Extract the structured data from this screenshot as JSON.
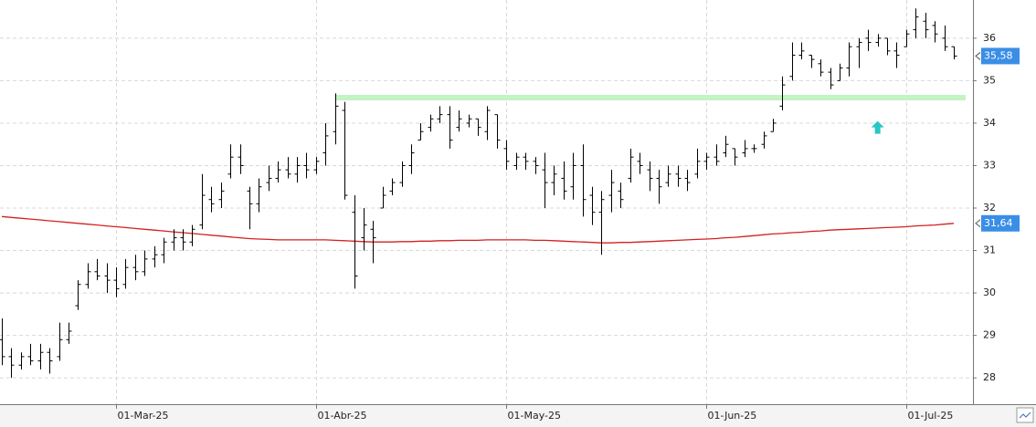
{
  "chart_data": {
    "type": "ohlc",
    "color": "#000000",
    "categories": [
      null,
      null,
      null,
      null,
      null,
      null,
      null,
      null,
      null,
      null,
      null,
      null,
      "01-Mar-25",
      null,
      null,
      null,
      null,
      null,
      null,
      null,
      null,
      null,
      null,
      null,
      null,
      null,
      null,
      null,
      null,
      null,
      null,
      null,
      null,
      "01-Abr-25",
      null,
      null,
      null,
      null,
      null,
      null,
      null,
      null,
      null,
      null,
      null,
      null,
      null,
      null,
      null,
      null,
      null,
      null,
      null,
      "01-May-25",
      null,
      null,
      null,
      null,
      null,
      null,
      null,
      null,
      null,
      null,
      null,
      null,
      null,
      null,
      null,
      null,
      null,
      null,
      null,
      null,
      "01-Jun-25",
      null,
      null,
      null,
      null,
      null,
      null,
      null,
      null,
      null,
      null,
      null,
      null,
      null,
      null,
      null,
      null,
      null,
      null,
      null,
      null,
      "01-Jul-25",
      null,
      null,
      null,
      null,
      null
    ],
    "open": [
      28.9,
      28.5,
      28.3,
      28.5,
      28.4,
      28.6,
      28.5,
      28.9,
      29.7,
      30.2,
      30.5,
      30.4,
      30.3,
      30.2,
      30.6,
      30.5,
      30.8,
      30.9,
      31.2,
      31.3,
      31.2,
      31.6,
      32.2,
      32.2,
      32.8,
      33.2,
      32.4,
      32.1,
      32.6,
      32.7,
      32.9,
      32.8,
      33.0,
      32.9,
      33.3,
      33.8,
      34.3,
      31.9,
      31.3,
      31.5,
      32.0,
      32.4,
      32.6,
      33.0,
      33.6,
      33.9,
      34.1,
      34.2,
      33.9,
      34.0,
      34.1,
      33.8,
      34.2,
      33.4,
      33.0,
      33.2,
      33.1,
      32.9,
      32.6,
      32.7,
      32.5,
      33.0,
      32.3,
      31.9,
      32.3,
      32.4,
      32.7,
      33.1,
      32.9,
      32.7,
      32.6,
      32.8,
      32.7,
      32.8,
      33.1,
      33.2,
      33.3,
      33.4,
      33.3,
      33.4,
      33.5,
      33.8,
      34.4,
      35.1,
      35.6,
      35.6,
      35.4,
      35.2,
      35.0,
      35.3,
      35.8,
      36.0,
      35.9,
      36.0,
      35.7,
      35.8,
      36.2,
      36.4,
      36.3,
      36.0,
      35.8
    ],
    "high": [
      29.4,
      28.7,
      28.6,
      28.8,
      28.8,
      28.7,
      29.3,
      29.3,
      30.3,
      30.7,
      30.8,
      30.7,
      30.6,
      30.8,
      30.9,
      31.0,
      31.1,
      31.3,
      31.5,
      31.5,
      31.6,
      32.8,
      32.5,
      32.6,
      33.5,
      33.5,
      32.5,
      32.7,
      33.0,
      33.1,
      33.2,
      33.2,
      33.3,
      33.2,
      34.0,
      34.7,
      34.5,
      32.3,
      32.0,
      31.7,
      32.5,
      32.7,
      33.1,
      33.5,
      34.0,
      34.2,
      34.4,
      34.4,
      34.3,
      34.2,
      34.1,
      34.4,
      34.2,
      33.6,
      33.3,
      33.3,
      33.2,
      33.3,
      33.0,
      33.1,
      33.3,
      33.5,
      32.5,
      32.4,
      32.9,
      32.6,
      33.4,
      33.3,
      33.1,
      32.9,
      33.0,
      33.0,
      32.9,
      33.4,
      33.3,
      33.5,
      33.7,
      33.4,
      33.6,
      33.5,
      33.8,
      34.1,
      35.1,
      35.9,
      35.9,
      35.6,
      35.5,
      35.3,
      35.4,
      35.9,
      36.0,
      36.2,
      36.1,
      36.0,
      35.9,
      36.2,
      36.7,
      36.6,
      36.4,
      36.3,
      35.8
    ],
    "low": [
      28.3,
      28.0,
      28.2,
      28.3,
      28.2,
      28.1,
      28.4,
      28.8,
      29.6,
      30.1,
      30.3,
      30.0,
      29.9,
      30.1,
      30.3,
      30.4,
      30.6,
      30.7,
      31.0,
      31.0,
      31.1,
      31.5,
      31.9,
      32.0,
      32.7,
      32.8,
      31.5,
      31.9,
      32.4,
      32.6,
      32.7,
      32.6,
      32.7,
      32.8,
      33.0,
      33.5,
      32.2,
      30.1,
      31.0,
      30.7,
      32.0,
      32.3,
      32.5,
      32.8,
      33.6,
      33.8,
      34.0,
      33.4,
      33.8,
      33.9,
      33.7,
      33.6,
      33.4,
      32.9,
      32.9,
      32.9,
      32.8,
      32.0,
      32.3,
      32.2,
      32.2,
      31.8,
      31.6,
      30.9,
      31.9,
      32.0,
      32.6,
      32.8,
      32.4,
      32.1,
      32.5,
      32.5,
      32.4,
      32.7,
      32.9,
      33.0,
      33.2,
      33.0,
      33.2,
      33.3,
      33.4,
      33.8,
      34.3,
      35.0,
      35.5,
      35.3,
      35.1,
      34.8,
      35.0,
      35.1,
      35.3,
      35.7,
      35.8,
      35.6,
      35.3,
      35.8,
      36.0,
      36.0,
      35.9,
      35.7,
      35.5
    ],
    "close": [
      28.5,
      28.3,
      28.5,
      28.4,
      28.6,
      28.4,
      28.9,
      29.1,
      30.2,
      30.5,
      30.4,
      30.3,
      30.1,
      30.6,
      30.5,
      30.8,
      30.9,
      31.2,
      31.3,
      31.2,
      31.5,
      32.3,
      32.1,
      32.4,
      33.2,
      33.0,
      32.1,
      32.5,
      32.7,
      32.9,
      32.8,
      33.0,
      32.9,
      33.1,
      33.7,
      34.4,
      32.3,
      30.4,
      31.6,
      31.3,
      32.3,
      32.6,
      33.0,
      33.3,
      33.8,
      34.1,
      34.2,
      33.6,
      34.1,
      34.1,
      33.9,
      34.3,
      33.6,
      33.1,
      33.2,
      33.1,
      33.0,
      32.6,
      32.8,
      32.4,
      33.0,
      32.2,
      31.9,
      32.2,
      32.6,
      32.2,
      33.2,
      33.0,
      32.7,
      32.5,
      32.8,
      32.7,
      32.6,
      33.1,
      33.2,
      33.1,
      33.5,
      33.2,
      33.4,
      33.4,
      33.7,
      34.0,
      34.9,
      35.6,
      35.7,
      35.5,
      35.2,
      34.9,
      35.3,
      35.8,
      35.9,
      35.9,
      36.0,
      35.7,
      35.6,
      36.1,
      36.5,
      36.2,
      36.1,
      35.8,
      35.58
    ],
    "price_marker": {
      "value": 35.58,
      "label": "35,58",
      "color": "#3a8ee6"
    },
    "series": [
      {
        "color": "#d42020",
        "values": [
          31.8,
          31.78,
          31.76,
          31.74,
          31.72,
          31.7,
          31.68,
          31.66,
          31.64,
          31.62,
          31.6,
          31.58,
          31.56,
          31.54,
          31.52,
          31.5,
          31.48,
          31.46,
          31.44,
          31.42,
          31.4,
          31.38,
          31.36,
          31.34,
          31.32,
          31.3,
          31.28,
          31.27,
          31.26,
          31.25,
          31.25,
          31.25,
          31.25,
          31.25,
          31.25,
          31.24,
          31.23,
          31.22,
          31.21,
          31.2,
          31.2,
          31.2,
          31.21,
          31.21,
          31.22,
          31.22,
          31.23,
          31.23,
          31.24,
          31.24,
          31.24,
          31.25,
          31.25,
          31.25,
          31.25,
          31.25,
          31.24,
          31.24,
          31.23,
          31.22,
          31.21,
          31.2,
          31.19,
          31.18,
          31.18,
          31.19,
          31.19,
          31.2,
          31.21,
          31.22,
          31.23,
          31.24,
          31.25,
          31.26,
          31.27,
          31.28,
          31.3,
          31.31,
          31.33,
          31.35,
          31.37,
          31.39,
          31.4,
          31.42,
          31.43,
          31.45,
          31.46,
          31.48,
          31.49,
          31.5,
          31.51,
          31.52,
          31.53,
          31.54,
          31.55,
          31.56,
          31.58,
          31.59,
          31.6,
          31.62,
          31.64
        ],
        "end_marker": {
          "value": 31.64,
          "label": "31,64",
          "color": "#3a8ee6"
        }
      }
    ],
    "hline": {
      "value": 34.6,
      "start_index": 35,
      "color": "#c4f3c4"
    },
    "signal": {
      "index": 92,
      "value": 33.9,
      "color": "#2ac5c5"
    },
    "ylim": [
      27.38,
      36.9
    ],
    "yticks": [
      28,
      29,
      30,
      31,
      32,
      33,
      34,
      35,
      36
    ],
    "grid": true
  }
}
